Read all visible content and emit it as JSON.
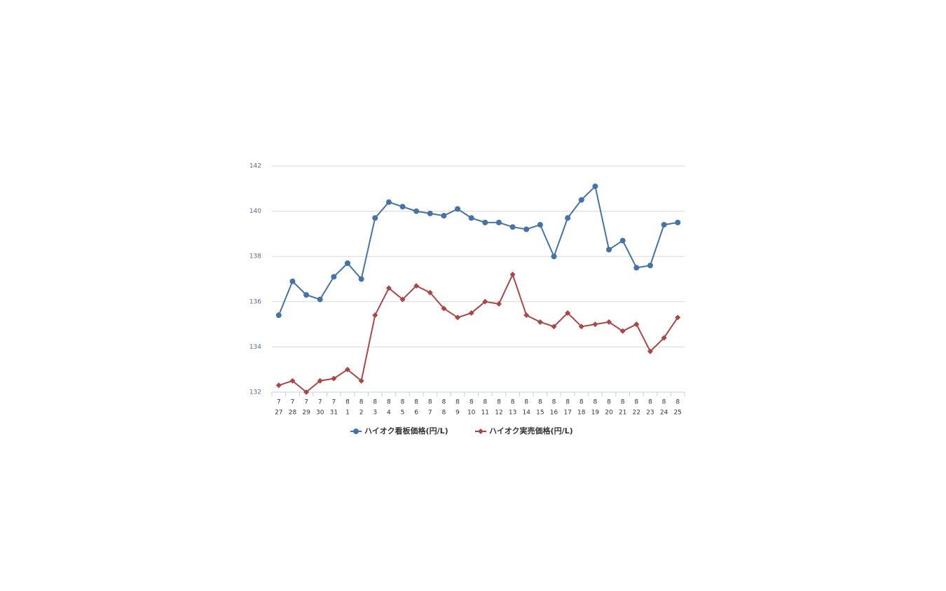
{
  "chart_data": {
    "type": "line",
    "categories": [
      [
        "7",
        "27"
      ],
      [
        "7",
        "28"
      ],
      [
        "7",
        "29"
      ],
      [
        "7",
        "30"
      ],
      [
        "7",
        "31"
      ],
      [
        "8",
        "1"
      ],
      [
        "8",
        "2"
      ],
      [
        "8",
        "3"
      ],
      [
        "8",
        "4"
      ],
      [
        "8",
        "5"
      ],
      [
        "8",
        "6"
      ],
      [
        "8",
        "7"
      ],
      [
        "8",
        "8"
      ],
      [
        "8",
        "9"
      ],
      [
        "8",
        "10"
      ],
      [
        "8",
        "11"
      ],
      [
        "8",
        "12"
      ],
      [
        "8",
        "13"
      ],
      [
        "8",
        "14"
      ],
      [
        "8",
        "15"
      ],
      [
        "8",
        "16"
      ],
      [
        "8",
        "17"
      ],
      [
        "8",
        "18"
      ],
      [
        "8",
        "19"
      ],
      [
        "8",
        "20"
      ],
      [
        "8",
        "21"
      ],
      [
        "8",
        "22"
      ],
      [
        "8",
        "23"
      ],
      [
        "8",
        "24"
      ],
      [
        "8",
        "25"
      ]
    ],
    "series": [
      {
        "name": "ハイオク看板価格(円/L)",
        "color": "#4572a7",
        "marker": "circle",
        "values": [
          135.4,
          136.9,
          136.3,
          136.1,
          137.1,
          137.7,
          137.0,
          139.7,
          140.4,
          140.2,
          140.0,
          139.9,
          139.8,
          140.1,
          139.7,
          139.5,
          139.5,
          139.3,
          139.2,
          139.4,
          138.0,
          139.7,
          140.5,
          141.1,
          138.3,
          138.7,
          137.5,
          137.6,
          139.4,
          139.5
        ]
      },
      {
        "name": "ハイオク実売価格(円/L)",
        "color": "#aa4643",
        "marker": "diamond",
        "values": [
          132.3,
          132.5,
          132.0,
          132.5,
          132.6,
          133.0,
          132.5,
          135.4,
          136.6,
          136.1,
          136.7,
          136.4,
          135.7,
          135.3,
          135.5,
          136.0,
          135.9,
          137.2,
          135.4,
          135.1,
          134.9,
          135.5,
          134.9,
          135.0,
          135.1,
          134.7,
          135.0,
          133.8,
          134.4,
          135.3
        ]
      }
    ],
    "ylim": [
      132,
      142
    ],
    "yticks": [
      132,
      134,
      136,
      138,
      140,
      142
    ],
    "grid": true,
    "legend": "bottom"
  }
}
